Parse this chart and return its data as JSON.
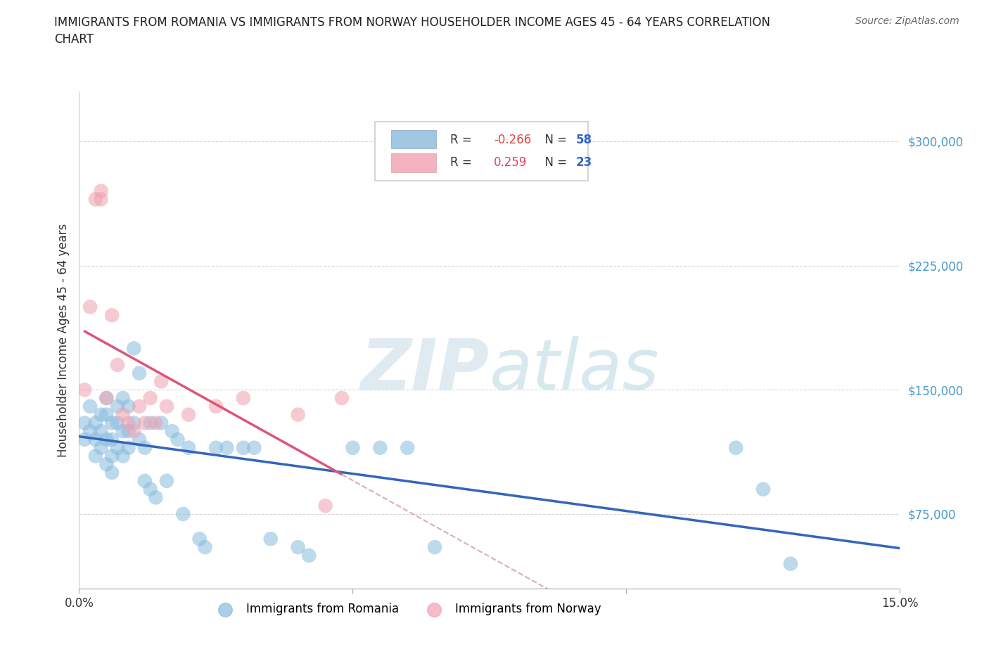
{
  "title": "IMMIGRANTS FROM ROMANIA VS IMMIGRANTS FROM NORWAY HOUSEHOLDER INCOME AGES 45 - 64 YEARS CORRELATION\nCHART",
  "source": "Source: ZipAtlas.com",
  "ylabel": "Householder Income Ages 45 - 64 years",
  "xlim": [
    0.0,
    0.15
  ],
  "ylim": [
    30000,
    330000
  ],
  "yticks": [
    75000,
    150000,
    225000,
    300000
  ],
  "ytick_labels": [
    "$75,000",
    "$150,000",
    "$225,000",
    "$300,000"
  ],
  "xticks": [
    0.0,
    0.05,
    0.1,
    0.15
  ],
  "xtick_labels": [
    "0.0%",
    "",
    "",
    "15.0%"
  ],
  "grid_color": "#cccccc",
  "background_color": "#ffffff",
  "romania_color": "#88bbdd",
  "norway_color": "#f0a0b0",
  "romania_R": "-0.266",
  "romania_N": "58",
  "norway_R": "0.259",
  "norway_N": "23",
  "romania_line_color": "#3366bb",
  "norway_line_color": "#dd5577",
  "norway_line_ext_color": "#ddaabb",
  "romania_points_x": [
    0.001,
    0.001,
    0.002,
    0.002,
    0.003,
    0.003,
    0.003,
    0.004,
    0.004,
    0.004,
    0.005,
    0.005,
    0.005,
    0.005,
    0.006,
    0.006,
    0.006,
    0.006,
    0.007,
    0.007,
    0.007,
    0.008,
    0.008,
    0.008,
    0.009,
    0.009,
    0.009,
    0.01,
    0.01,
    0.011,
    0.011,
    0.012,
    0.012,
    0.013,
    0.013,
    0.014,
    0.015,
    0.016,
    0.017,
    0.018,
    0.019,
    0.02,
    0.022,
    0.023,
    0.025,
    0.027,
    0.03,
    0.032,
    0.035,
    0.04,
    0.042,
    0.05,
    0.055,
    0.06,
    0.065,
    0.12,
    0.125,
    0.13
  ],
  "romania_points_y": [
    130000,
    120000,
    140000,
    125000,
    130000,
    120000,
    110000,
    135000,
    125000,
    115000,
    145000,
    135000,
    120000,
    105000,
    130000,
    120000,
    110000,
    100000,
    140000,
    130000,
    115000,
    145000,
    125000,
    110000,
    140000,
    125000,
    115000,
    175000,
    130000,
    160000,
    120000,
    115000,
    95000,
    130000,
    90000,
    85000,
    130000,
    95000,
    125000,
    120000,
    75000,
    115000,
    60000,
    55000,
    115000,
    115000,
    115000,
    115000,
    60000,
    55000,
    50000,
    115000,
    115000,
    115000,
    55000,
    115000,
    90000,
    45000
  ],
  "norway_points_x": [
    0.001,
    0.002,
    0.003,
    0.004,
    0.004,
    0.005,
    0.006,
    0.007,
    0.008,
    0.009,
    0.01,
    0.011,
    0.012,
    0.013,
    0.014,
    0.015,
    0.016,
    0.02,
    0.025,
    0.03,
    0.04,
    0.045,
    0.048
  ],
  "norway_points_y": [
    150000,
    200000,
    265000,
    265000,
    270000,
    145000,
    195000,
    165000,
    135000,
    130000,
    125000,
    140000,
    130000,
    145000,
    130000,
    155000,
    140000,
    135000,
    140000,
    145000,
    135000,
    80000,
    145000
  ]
}
